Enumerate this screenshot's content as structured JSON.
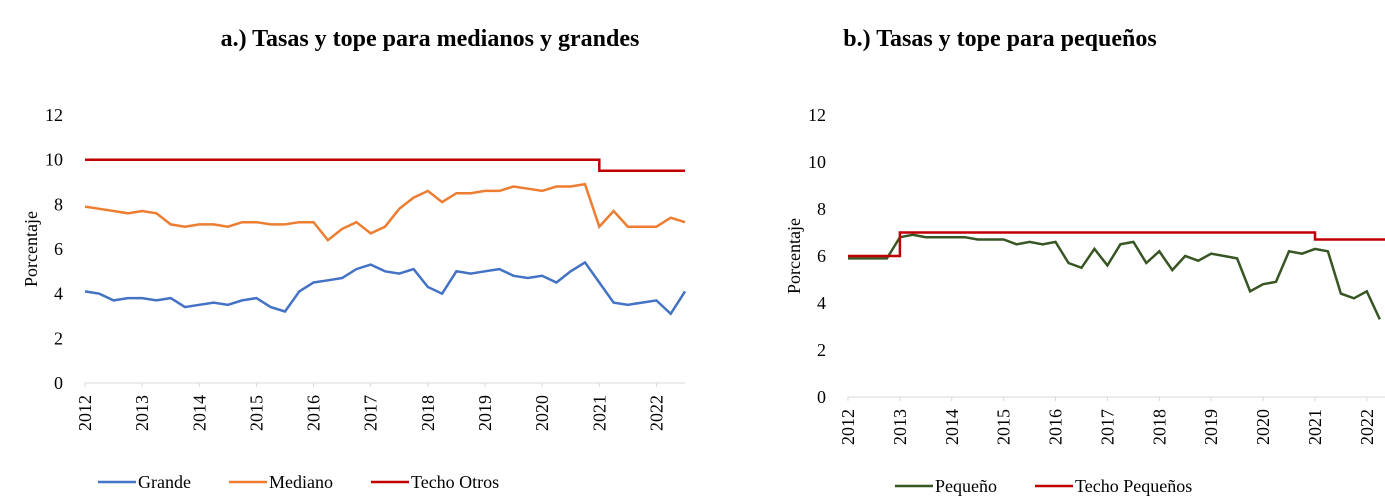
{
  "chart_data": [
    {
      "type": "line",
      "title": "a.)  Tasas y tope para medianos y grandes",
      "y_label": "Porcentaje",
      "xlim": [
        2012,
        2022.5
      ],
      "xticks": [
        2012,
        2013,
        2014,
        2015,
        2016,
        2017,
        2018,
        2019,
        2020,
        2021,
        2022
      ],
      "ylim": [
        0,
        12
      ],
      "yticks": [
        0,
        2,
        4,
        6,
        8,
        10,
        12
      ],
      "grid": false,
      "legend": "bottom",
      "series": [
        {
          "name": "Grande",
          "color": "#4472c4",
          "x": [
            2012,
            2012.25,
            2012.5,
            2012.75,
            2013,
            2013.25,
            2013.5,
            2013.75,
            2014,
            2014.25,
            2014.5,
            2014.75,
            2015,
            2015.25,
            2015.5,
            2015.75,
            2016,
            2016.25,
            2016.5,
            2016.75,
            2017,
            2017.25,
            2017.5,
            2017.75,
            2018,
            2018.25,
            2018.5,
            2018.75,
            2019,
            2019.25,
            2019.5,
            2019.75,
            2020,
            2020.25,
            2020.5,
            2020.75,
            2021,
            2021.25,
            2021.5,
            2021.75,
            2022,
            2022.25,
            2022.5
          ],
          "values": [
            4.1,
            4.0,
            3.7,
            3.8,
            3.8,
            3.7,
            3.8,
            3.4,
            3.5,
            3.6,
            3.5,
            3.7,
            3.8,
            3.4,
            3.2,
            4.1,
            4.5,
            4.6,
            4.7,
            5.1,
            5.3,
            5.0,
            4.9,
            5.1,
            4.3,
            4.0,
            5.0,
            4.9,
            5.0,
            5.1,
            4.8,
            4.7,
            4.8,
            4.5,
            5.0,
            5.4,
            4.5,
            3.6,
            3.5,
            3.6,
            3.7,
            3.1,
            4.1
          ]
        },
        {
          "name": "Mediano",
          "color": "#ed7d31",
          "x": [
            2012,
            2012.25,
            2012.5,
            2012.75,
            2013,
            2013.25,
            2013.5,
            2013.75,
            2014,
            2014.25,
            2014.5,
            2014.75,
            2015,
            2015.25,
            2015.5,
            2015.75,
            2016,
            2016.25,
            2016.5,
            2016.75,
            2017,
            2017.25,
            2017.5,
            2017.75,
            2018,
            2018.25,
            2018.5,
            2018.75,
            2019,
            2019.25,
            2019.5,
            2019.75,
            2020,
            2020.25,
            2020.5,
            2020.75,
            2021,
            2021.25,
            2021.5,
            2021.75,
            2022,
            2022.25,
            2022.5
          ],
          "values": [
            7.9,
            7.8,
            7.7,
            7.6,
            7.7,
            7.6,
            7.1,
            7.0,
            7.1,
            7.1,
            7.0,
            7.2,
            7.2,
            7.1,
            7.1,
            7.2,
            7.2,
            6.4,
            6.9,
            7.2,
            6.7,
            7.0,
            7.8,
            8.3,
            8.6,
            8.1,
            8.5,
            8.5,
            8.6,
            8.6,
            8.8,
            8.7,
            8.6,
            8.8,
            8.8,
            8.9,
            7.0,
            7.7,
            7.0,
            7.0,
            7.0,
            7.4,
            7.2
          ]
        },
        {
          "name": "Techo Otros",
          "color": "#c00000",
          "x": [
            2012,
            2021,
            2021,
            2022.5
          ],
          "values": [
            10,
            10,
            9.5,
            9.5
          ]
        }
      ]
    },
    {
      "type": "line",
      "title": "b.)  Tasas y tope para pequeños",
      "y_label": "Porcentaje",
      "xlim": [
        2012,
        2022.35
      ],
      "xticks": [
        2012,
        2013,
        2014,
        2015,
        2016,
        2017,
        2018,
        2019,
        2020,
        2021,
        2022
      ],
      "ylim": [
        0,
        12
      ],
      "yticks": [
        0,
        2,
        4,
        6,
        8,
        10,
        12
      ],
      "grid": false,
      "legend": "bottom",
      "series": [
        {
          "name": "Pequeño",
          "color": "#375623",
          "x": [
            2012,
            2012.25,
            2012.5,
            2012.75,
            2013,
            2013.25,
            2013.5,
            2013.75,
            2014,
            2014.25,
            2014.5,
            2014.75,
            2015,
            2015.25,
            2015.5,
            2015.75,
            2016,
            2016.25,
            2016.5,
            2016.75,
            2017,
            2017.25,
            2017.5,
            2017.75,
            2018,
            2018.25,
            2018.5,
            2018.75,
            2019,
            2019.25,
            2019.5,
            2019.75,
            2020,
            2020.25,
            2020.5,
            2020.75,
            2021,
            2021.25,
            2021.5,
            2021.75,
            2022,
            2022.25
          ],
          "values": [
            5.9,
            5.9,
            5.9,
            5.9,
            6.8,
            6.9,
            6.8,
            6.8,
            6.8,
            6.8,
            6.7,
            6.7,
            6.7,
            6.5,
            6.6,
            6.5,
            6.6,
            5.7,
            5.5,
            6.3,
            5.6,
            6.5,
            6.6,
            5.7,
            6.2,
            5.4,
            6.0,
            5.8,
            6.1,
            6.0,
            5.9,
            4.5,
            4.8,
            4.9,
            6.2,
            6.1,
            6.3,
            6.2,
            4.4,
            4.2,
            4.5,
            3.3
          ]
        },
        {
          "name": "Techo Pequeños",
          "color": "#c00000",
          "x": [
            2012,
            2013,
            2013,
            2021,
            2021,
            2022.35
          ],
          "values": [
            6,
            6,
            7,
            7,
            6.7,
            6.7
          ]
        }
      ]
    }
  ]
}
